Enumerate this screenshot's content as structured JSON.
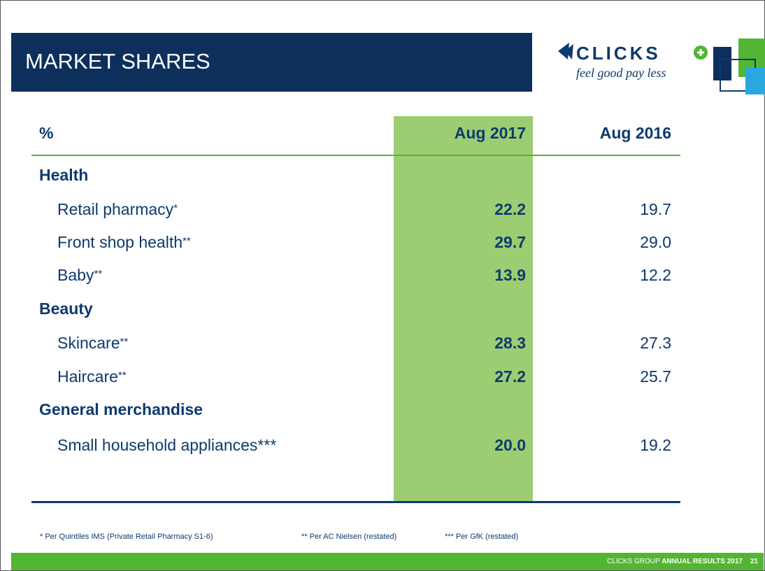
{
  "header": {
    "title": "MARKET SHARES",
    "logo": {
      "brand": "CLICKS",
      "tagline": "feel good pay less"
    }
  },
  "table": {
    "columns": [
      "%",
      "Aug 2017",
      "Aug 2016"
    ],
    "rows": [
      {
        "kind": "group",
        "label": "Health"
      },
      {
        "kind": "item",
        "label": "Retail pharmacy",
        "note": "*",
        "values": [
          "22.2",
          "19.7"
        ]
      },
      {
        "kind": "item",
        "label": "Front shop health",
        "note": "**",
        "values": [
          "29.7",
          "29.0"
        ]
      },
      {
        "kind": "item",
        "label": "Baby",
        "note": "**",
        "values": [
          "13.9",
          "12.2"
        ]
      },
      {
        "kind": "group",
        "label": "Beauty"
      },
      {
        "kind": "item",
        "label": "Skincare",
        "note": "**",
        "values": [
          "28.3",
          "27.3"
        ]
      },
      {
        "kind": "item",
        "label": "Haircare",
        "note": "**",
        "values": [
          "27.2",
          "25.7"
        ]
      },
      {
        "kind": "group",
        "label": "General merchandise"
      },
      {
        "kind": "item",
        "label": "Small household appliances",
        "note": "***",
        "values": [
          "20.0",
          "19.2"
        ]
      }
    ]
  },
  "footnotes": [
    "* Per Quintiles IMS (Private Retail Pharmacy S1-6)",
    "** Per AC Nielsen (restated)",
    "*** Per GfK (restated)"
  ],
  "footer": {
    "prefix": "CLICKS GROUP ",
    "emphasis": "ANNUAL RESULTS 2017",
    "page": "21"
  }
}
